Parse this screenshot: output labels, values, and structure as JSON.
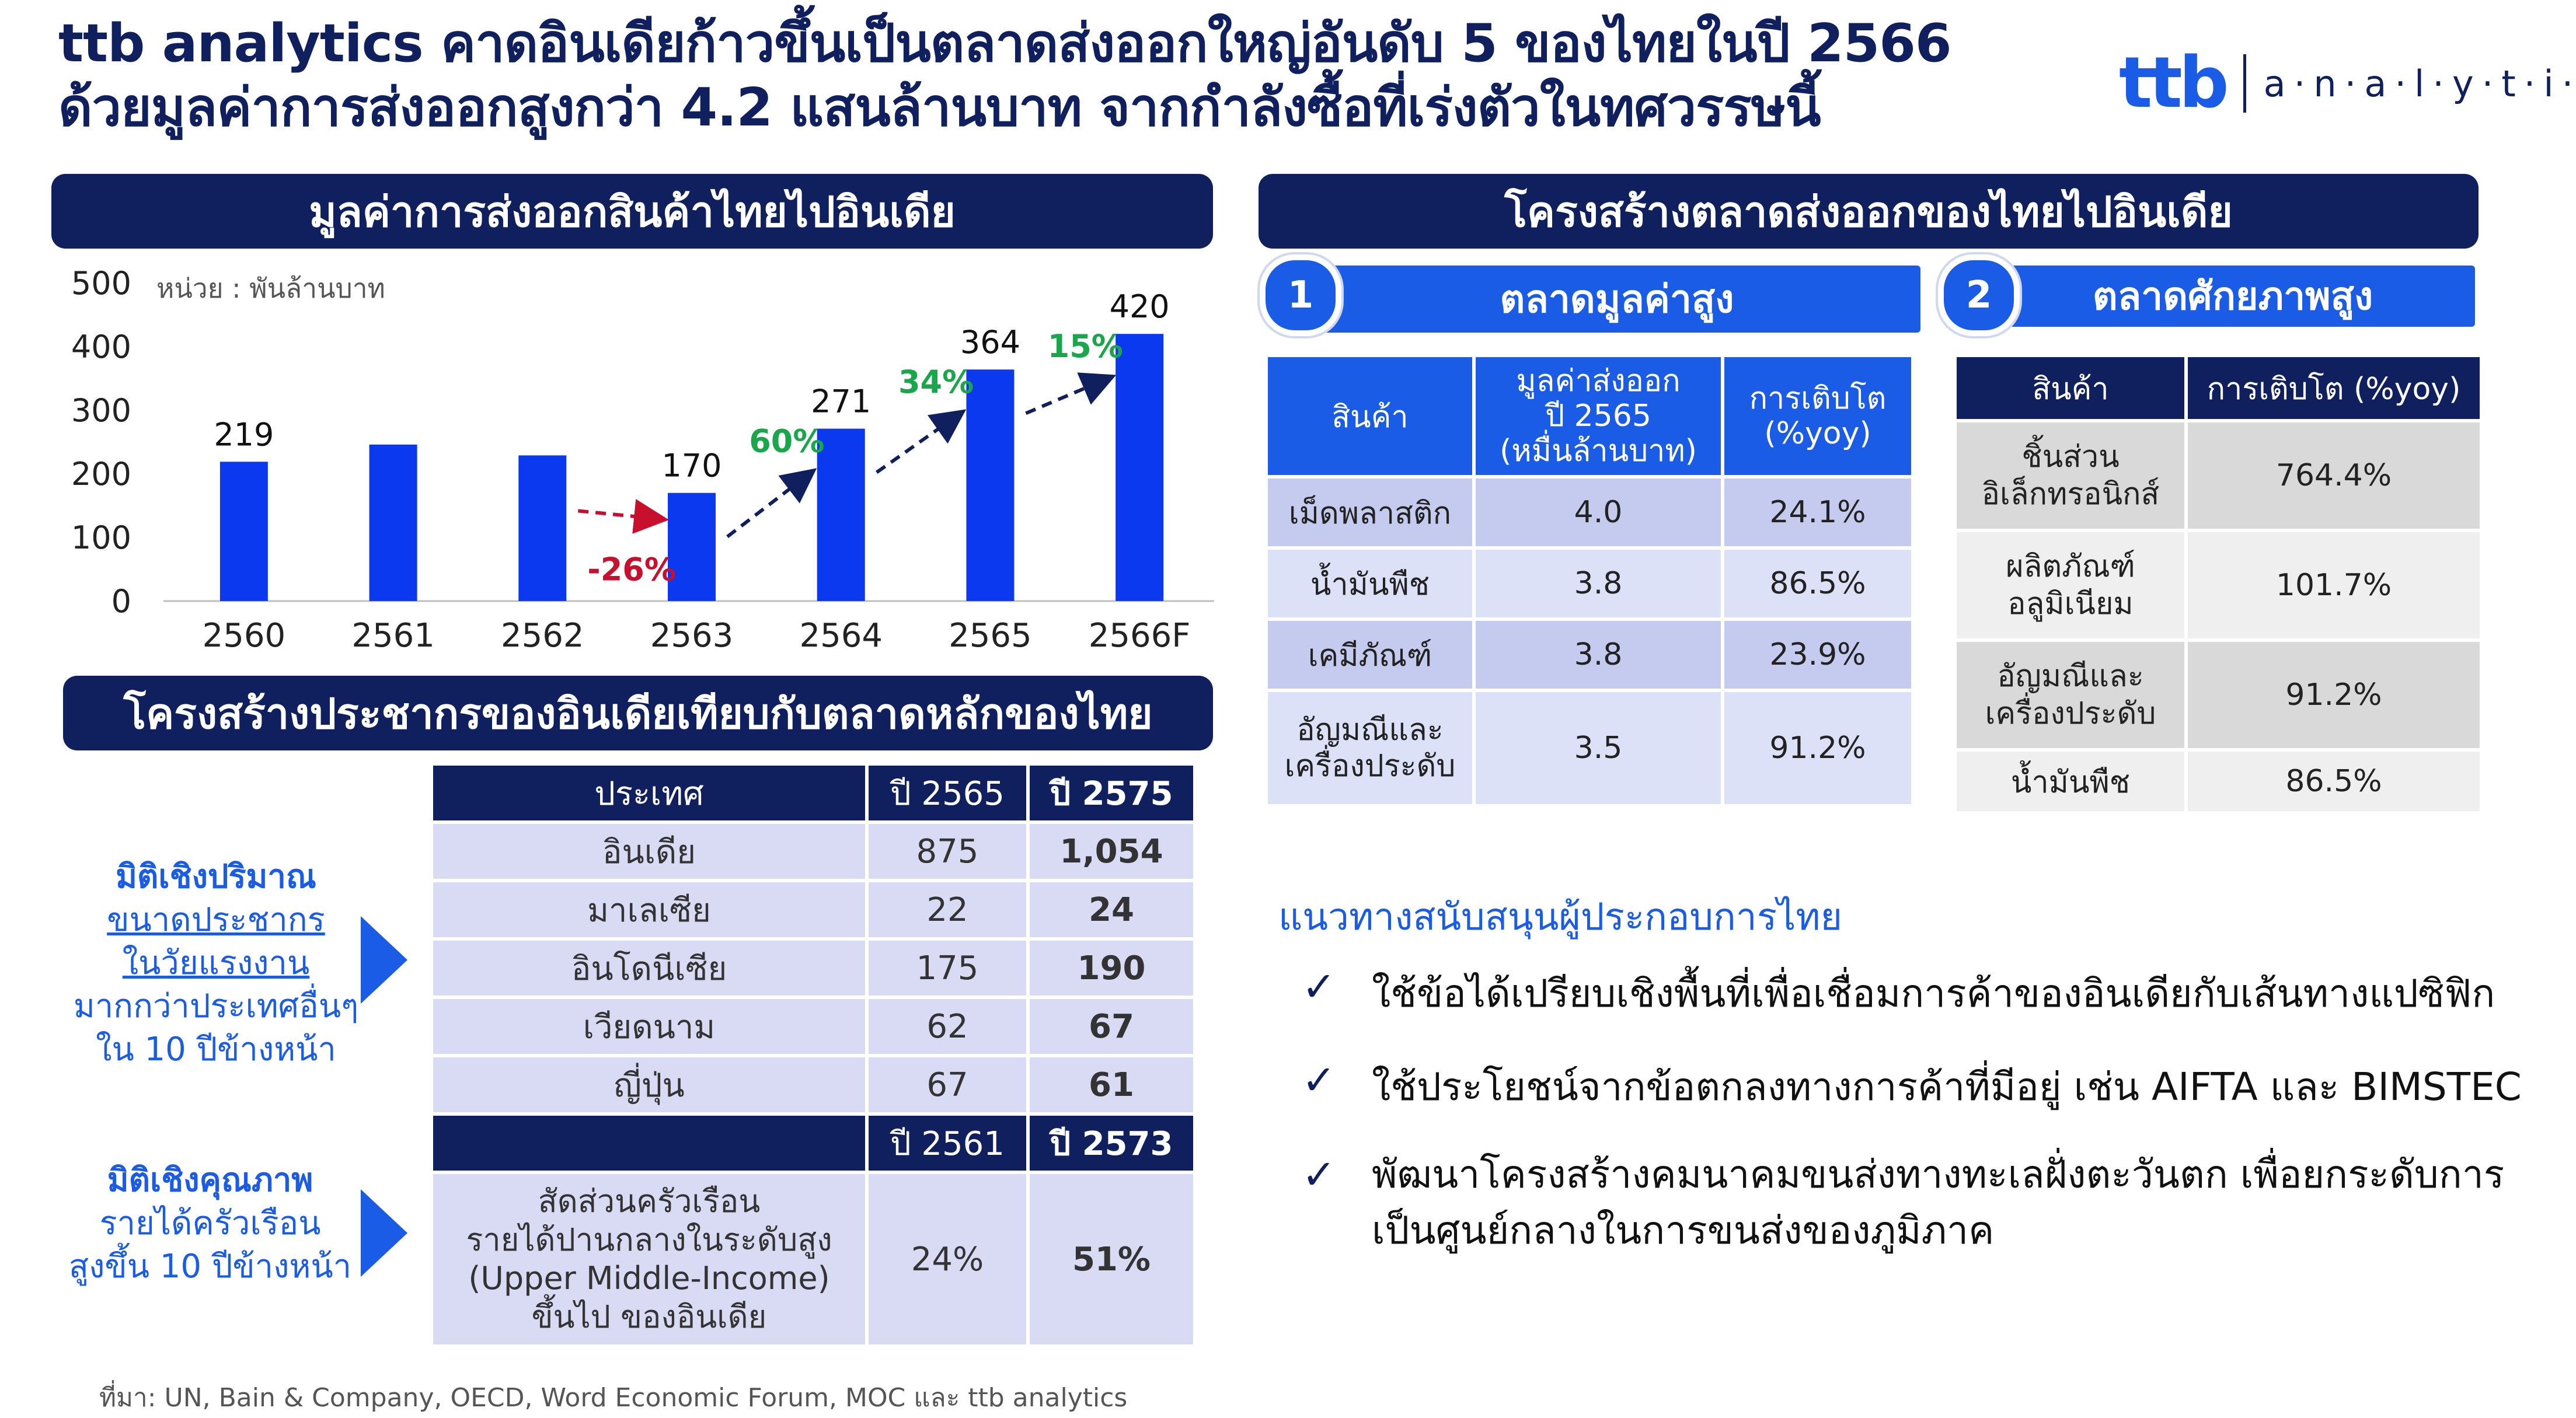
{
  "headline": {
    "line1": "ttb analytics คาดอินเดียก้าวขึ้นเป็นตลาดส่งออกใหญ่อันดับ 5 ของไทยในปี 2566",
    "line2": "ด้วยมูลค่าการส่งออกสูงกว่า 4.2 แสนล้านบาท จากกำลังซื้อที่เร่งตัวในทศวรรษนี้"
  },
  "logo": {
    "ttb": "ttb",
    "analytics": "a·n·a·l·y·t·i·c·s"
  },
  "colors": {
    "navy": "#10205e",
    "blue": "#1a5ce6",
    "bar": "#0a39f0",
    "green": "#1aa64a",
    "red": "#c8102e"
  },
  "left_chart": {
    "banner": "มูลค่าการส่งออกสินค้าไทยไปอินเดีย",
    "unit": "หน่วย : พันล้านบาท"
  },
  "chart_data": {
    "type": "bar",
    "categories": [
      "2560",
      "2561",
      "2562",
      "2563",
      "2564",
      "2565",
      "2566F"
    ],
    "values": [
      219,
      246,
      229,
      170,
      271,
      364,
      420
    ],
    "data_labels": [
      "219",
      "",
      "",
      "170",
      "271",
      "364",
      "420"
    ],
    "ylim": [
      0,
      500
    ],
    "yticks": [
      0,
      100,
      200,
      300,
      400,
      500
    ],
    "annotations": [
      {
        "text": "-26%",
        "from": "2562",
        "to": "2563",
        "color": "red"
      },
      {
        "text": "60%",
        "from": "2563",
        "to": "2564",
        "color": "green"
      },
      {
        "text": "34%",
        "from": "2564",
        "to": "2565",
        "color": "green"
      },
      {
        "text": "15%",
        "from": "2565",
        "to": "2566F",
        "color": "green"
      }
    ],
    "grid": false,
    "legend": "none"
  },
  "population": {
    "banner": "โครงสร้างประชากรของอินเดียเทียบกับตลาดหลักของไทย",
    "header": [
      "ประเทศ",
      "ปี 2565",
      "ปี 2575"
    ],
    "rows": [
      [
        "อินเดีย",
        "875",
        "1,054"
      ],
      [
        "มาเลเซีย",
        "22",
        "24"
      ],
      [
        "อินโดนีเซีย",
        "175",
        "190"
      ],
      [
        "เวียดนาม",
        "62",
        "67"
      ],
      [
        "ญี่ปุ่น",
        "67",
        "61"
      ]
    ],
    "header2": [
      "",
      "ปี 2561",
      "ปี 2573"
    ],
    "income_row": {
      "label_lines": [
        "สัดส่วนครัวเรือน",
        "รายได้ปานกลางในระดับสูง",
        "(Upper Middle-Income)",
        "ขึ้นไป ของอินเดีย"
      ],
      "v1": "24%",
      "v2": "51%"
    },
    "side_quantity": {
      "title": "มิติเชิงปริมาณ",
      "ul1": "ขนาดประชากร",
      "ul2": "ในวัยแรงงาน",
      "l3": "มากกว่าประเทศอื่นๆ",
      "l4": "ใน 10 ปีข้างหน้า"
    },
    "side_quality": {
      "title": "มิติเชิงคุณภาพ",
      "l2": "รายได้ครัวเรือน",
      "l3": "สูงขึ้น 10 ปีข้างหน้า"
    }
  },
  "right": {
    "banner": "โครงสร้างตลาดส่งออกของไทยไปอินเดีย",
    "m1": {
      "num": "1",
      "title": "ตลาดมูลค่าสูง",
      "header": [
        "สินค้า",
        "มูลค่าส่งออก ปี 2565 (หมื่นล้านบาท)",
        "การเติบโต (%yoy)"
      ],
      "header_lines": [
        [
          "สินค้า"
        ],
        [
          "มูลค่าส่งออก",
          "ปี 2565",
          "(หมื่นล้านบาท)"
        ],
        [
          "การเติบโต",
          "(%yoy)"
        ]
      ],
      "rows": [
        {
          "item_lines": [
            "เม็ดพลาสติก"
          ],
          "value": "4.0",
          "growth": "24.1%"
        },
        {
          "item_lines": [
            "น้ำมันพืช"
          ],
          "value": "3.8",
          "growth": "86.5%"
        },
        {
          "item_lines": [
            "เคมีภัณฑ์"
          ],
          "value": "3.8",
          "growth": "23.9%"
        },
        {
          "item_lines": [
            "อัญมณีและ",
            "เครื่องประดับ"
          ],
          "value": "3.5",
          "growth": "91.2%"
        }
      ]
    },
    "m2": {
      "num": "2",
      "title": "ตลาดศักยภาพสูง",
      "header": [
        "สินค้า",
        "การเติบโต (%yoy)"
      ],
      "rows": [
        {
          "item_lines": [
            "ชิ้นส่วน",
            "อิเล็กทรอนิกส์"
          ],
          "growth": "764.4%"
        },
        {
          "item_lines": [
            "ผลิตภัณฑ์",
            "อลูมิเนียม"
          ],
          "growth": "101.7%"
        },
        {
          "item_lines": [
            "อัญมณีและ",
            "เครื่องประดับ"
          ],
          "growth": "91.2%"
        },
        {
          "item_lines": [
            "น้ำมันพืช"
          ],
          "growth": "86.5%"
        }
      ]
    },
    "support": {
      "title": "แนวทางสนับสนุนผู้ประกอบการไทย",
      "check": "✓",
      "items": [
        [
          "ใช้ข้อได้เปรียบเชิงพื้นที่เพื่อเชื่อมการค้าของอินเดียกับเส้นทางแปซิฟิก"
        ],
        [
          "ใช้ประโยชน์จากข้อตกลงทางการค้าที่มีอยู่ เช่น AIFTA และ BIMSTEC"
        ],
        [
          "พัฒนาโครงสร้างคมนาคมขนส่งทางทะเลฝั่งตะวันตก เพื่อยกระดับการ",
          "เป็นศูนย์กลางในการขนส่งของภูมิภาค"
        ]
      ]
    }
  },
  "source": "ที่มา: UN, Bain & Company, OECD, Word Economic Forum, MOC และ ttb analytics"
}
